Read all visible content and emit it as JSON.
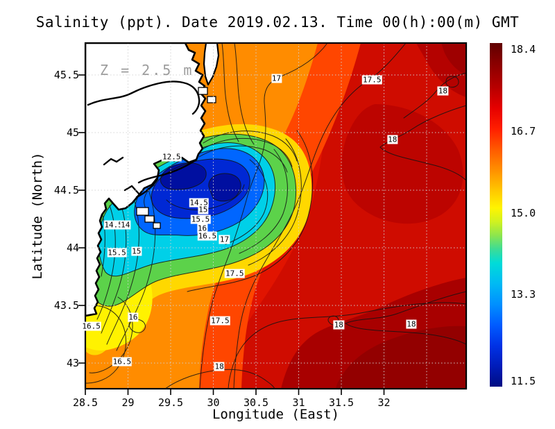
{
  "title": "Salinity (ppt). Date 2019.02.13. Time 00(h):00(m) GMT",
  "annotation_z": "Z = 2.5 m",
  "axes": {
    "xlabel": "Longitude (East)",
    "ylabel": "Latitude (North)",
    "xticks": [
      {
        "label": "28.5",
        "lon": 28.5
      },
      {
        "label": "29",
        "lon": 29
      },
      {
        "label": "29.5",
        "lon": 29.5
      },
      {
        "label": "30",
        "lon": 30
      },
      {
        "label": "30.5",
        "lon": 30.5
      },
      {
        "label": "31",
        "lon": 31
      },
      {
        "label": "31.5",
        "lon": 31.5
      },
      {
        "label": "32",
        "lon": 32
      }
    ],
    "yticks": [
      {
        "label": "45.5",
        "lat": 45.5
      },
      {
        "label": "45",
        "lat": 45
      },
      {
        "label": "44.5",
        "lat": 44.5
      },
      {
        "label": "44",
        "lat": 44
      },
      {
        "label": "43.5",
        "lat": 43.5
      },
      {
        "label": "43",
        "lat": 43
      }
    ]
  },
  "colorbar": {
    "vmin": 11.5,
    "vmax": 18.4,
    "ticks": [
      {
        "label": "18.4",
        "value": 18.4
      },
      {
        "label": "16.7",
        "value": 16.7
      },
      {
        "label": "15.0",
        "value": 15.0
      },
      {
        "label": "13.3",
        "value": 13.3
      },
      {
        "label": "11.5",
        "value": 11.5
      }
    ],
    "top_color": "#600000",
    "bottom_color": "#000c82"
  },
  "chart_data": {
    "type": "heatmap",
    "title": "Salinity (ppt). Date 2019.02.13. Time 00(h):00(m) GMT",
    "xlabel": "Longitude (East)",
    "ylabel": "Latitude (North)",
    "units": "ppt",
    "depth_annotation": "Z = 2.5 m",
    "xlim": [
      28.5,
      32.96
    ],
    "ylim": [
      42.78,
      45.78
    ],
    "grid": "dotted 0.5-degree graticule",
    "legend_position": "colorbar right",
    "colormap": "jet: dark blue 11.5 -> cyan -> yellow -> red -> dark red 18.4",
    "colorbar_ticks": [
      18.4,
      16.7,
      15.0,
      13.3,
      11.5
    ],
    "lons": [
      28.6,
      29.0,
      29.4,
      29.8,
      30.2,
      30.6,
      31.0,
      31.4,
      31.8,
      32.2,
      32.6,
      32.9
    ],
    "lats": [
      45.6,
      45.2,
      44.8,
      44.4,
      44.0,
      43.6,
      43.2,
      42.9
    ],
    "salinity": [
      [
        null,
        null,
        null,
        16.5,
        16.8,
        17.0,
        17.3,
        17.5,
        17.6,
        17.9,
        18.0,
        18.1
      ],
      [
        null,
        null,
        null,
        16.4,
        16.8,
        17.1,
        17.4,
        17.6,
        17.8,
        17.9,
        18.1,
        18.0
      ],
      [
        null,
        null,
        13.5,
        13.0,
        14.5,
        16.3,
        17.4,
        17.7,
        17.9,
        18.0,
        18.0,
        18.1
      ],
      [
        null,
        12.5,
        11.8,
        12.0,
        16.8,
        17.3,
        17.6,
        17.8,
        17.9,
        17.9,
        18.0,
        18.0
      ],
      [
        15.0,
        15.2,
        14.8,
        16.2,
        17.0,
        17.5,
        17.7,
        17.8,
        17.9,
        17.9,
        18.0,
        18.0
      ],
      [
        15.9,
        16.1,
        16.4,
        16.9,
        17.4,
        17.6,
        17.8,
        17.9,
        18.0,
        18.0,
        18.0,
        18.1
      ],
      [
        16.4,
        16.5,
        16.9,
        17.4,
        17.6,
        17.8,
        18.0,
        18.1,
        18.1,
        18.1,
        18.1,
        18.2
      ],
      [
        16.6,
        16.8,
        17.3,
        17.9,
        18.0,
        18.1,
        18.2,
        18.2,
        18.2,
        18.2,
        18.3,
        18.3
      ]
    ],
    "contour_labels": [
      {
        "text": "12.5",
        "lon": 29.51,
        "lat": 44.79
      },
      {
        "text": "14.5",
        "lon": 28.83,
        "lat": 44.2
      },
      {
        "text": "14",
        "lon": 28.97,
        "lat": 44.2
      },
      {
        "text": "15.5",
        "lon": 28.87,
        "lat": 43.96
      },
      {
        "text": "15",
        "lon": 29.1,
        "lat": 43.97
      },
      {
        "text": "14.5",
        "lon": 29.83,
        "lat": 44.39
      },
      {
        "text": "15",
        "lon": 29.88,
        "lat": 44.33
      },
      {
        "text": "15.5",
        "lon": 29.85,
        "lat": 44.25
      },
      {
        "text": "16",
        "lon": 29.87,
        "lat": 44.17
      },
      {
        "text": "16.5",
        "lon": 29.93,
        "lat": 44.1
      },
      {
        "text": "17",
        "lon": 30.13,
        "lat": 44.07
      },
      {
        "text": "17.5",
        "lon": 30.25,
        "lat": 43.78
      },
      {
        "text": "16",
        "lon": 29.06,
        "lat": 43.4
      },
      {
        "text": "16.5",
        "lon": 28.57,
        "lat": 43.32
      },
      {
        "text": "17.5",
        "lon": 30.08,
        "lat": 43.37
      },
      {
        "text": "16.5",
        "lon": 28.93,
        "lat": 43.01
      },
      {
        "text": "18",
        "lon": 30.07,
        "lat": 42.97
      },
      {
        "text": "17",
        "lon": 30.74,
        "lat": 45.47
      },
      {
        "text": "17.5",
        "lon": 31.86,
        "lat": 45.46
      },
      {
        "text": "18",
        "lon": 32.69,
        "lat": 45.36
      },
      {
        "text": "18",
        "lon": 32.1,
        "lat": 44.94
      },
      {
        "text": "18",
        "lon": 31.47,
        "lat": 43.33
      },
      {
        "text": "18",
        "lon": 32.32,
        "lat": 43.34
      }
    ]
  }
}
